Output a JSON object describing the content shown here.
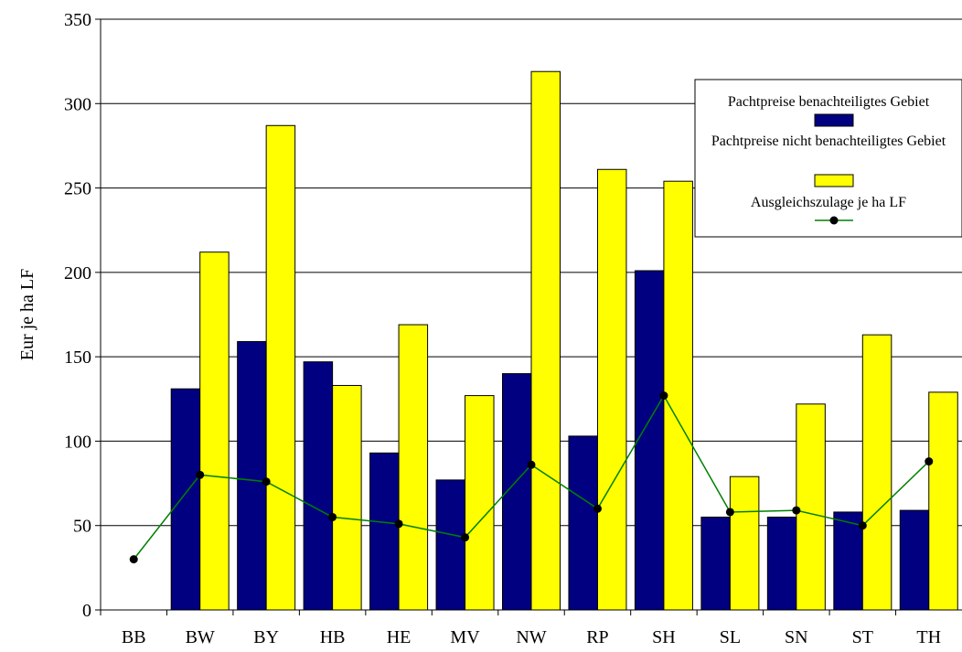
{
  "chart_data": {
    "type": "bar",
    "title": "",
    "xlabel": "",
    "ylabel": "Eur je ha LF",
    "ylim": [
      0,
      350
    ],
    "yticks": [
      0,
      50,
      100,
      150,
      200,
      250,
      300,
      350
    ],
    "grid": true,
    "legend_position": "top-right",
    "categories": [
      "BB",
      "BW",
      "BY",
      "HB",
      "HE",
      "MV",
      "NW",
      "RP",
      "SH",
      "SL",
      "SN",
      "ST",
      "TH"
    ],
    "series": [
      {
        "name": "Pachtpreise benachteiligtes Gebiet",
        "type": "bar",
        "color": "#000080",
        "values": [
          0,
          131,
          159,
          147,
          93,
          77,
          140,
          103,
          201,
          55,
          55,
          58,
          59
        ]
      },
      {
        "name": "Pachtpreise nicht benachteiligtes Gebiet",
        "type": "bar",
        "color": "#ffff00",
        "values": [
          0,
          212,
          287,
          133,
          169,
          127,
          319,
          261,
          254,
          79,
          122,
          163,
          129
        ]
      },
      {
        "name": "Ausgleichszulage je ha LF",
        "type": "line",
        "color": "#008000",
        "marker_color": "#000000",
        "values": [
          30,
          80,
          76,
          55,
          51,
          43,
          86,
          60,
          127,
          58,
          59,
          50,
          88
        ]
      }
    ]
  }
}
